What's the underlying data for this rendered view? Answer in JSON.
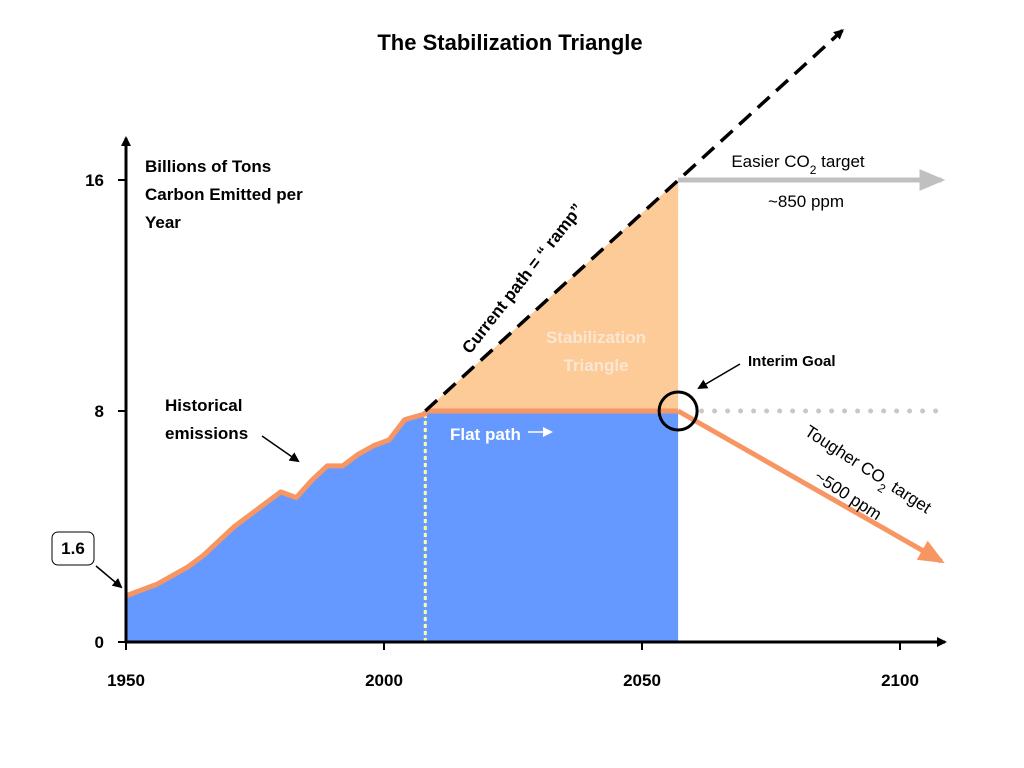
{
  "chart_data": {
    "type": "area",
    "title": "The Stabilization Triangle",
    "ylabel_lines": [
      "Billions of Tons",
      "Carbon Emitted per",
      "Year"
    ],
    "xlim": [
      1950,
      2100
    ],
    "ylim": [
      0,
      16
    ],
    "x_ticks": [
      "1950",
      "2000",
      "2050",
      "2100"
    ],
    "y_ticks": [
      "0",
      "8",
      "16"
    ],
    "start_value_label": "1.6",
    "historical": {
      "x": [
        1950,
        1953,
        1956,
        1959,
        1962,
        1965,
        1968,
        1971,
        1974,
        1977,
        1980,
        1983,
        1986,
        1989,
        1992,
        1995,
        1998,
        2001,
        2004,
        2008
      ],
      "y": [
        1.6,
        1.8,
        2.0,
        2.3,
        2.6,
        3.0,
        3.5,
        4.0,
        4.4,
        4.8,
        5.2,
        5.0,
        5.6,
        6.1,
        6.1,
        6.5,
        6.8,
        7.0,
        7.7,
        7.9
      ]
    },
    "ramp": {
      "x": [
        2008,
        2057
      ],
      "y": [
        8,
        16
      ]
    },
    "flat_path": {
      "x": [
        2008,
        2057
      ],
      "y": [
        8,
        8
      ]
    },
    "easier_target": {
      "x": [
        2057,
        2108
      ],
      "y": [
        16,
        16
      ]
    },
    "tougher_target": {
      "x": [
        2057,
        2108
      ],
      "y": [
        8,
        2.8
      ]
    },
    "interim_dotted": {
      "x": [
        2060,
        2108
      ],
      "y": [
        8,
        8
      ]
    },
    "colors": {
      "historical_fill": "#6699ff",
      "triangle_fill": "#fccb97",
      "orange_line": "#f79663",
      "gray_arrow": "#c0c0c0",
      "dotted_gray": "#c8c8c8",
      "divider_yellow": "#ffff99"
    },
    "annotations": {
      "historical_emissions": [
        "Historical",
        "emissions"
      ],
      "current_path": "Current path = “ ramp”",
      "stabilization_triangle": [
        "Stabilization",
        "Triangle"
      ],
      "interim_goal": "Interim Goal",
      "flat_path": "Flat path",
      "easier_target_prefix": "Easier CO",
      "easier_target_sub": "2",
      "easier_target_suffix": " target",
      "easier_ppm": "~850 ppm",
      "tougher_target_prefix": "Tougher CO",
      "tougher_target_sub": "2",
      "tougher_target_suffix": " target",
      "tougher_ppm": "~500 ppm"
    }
  }
}
